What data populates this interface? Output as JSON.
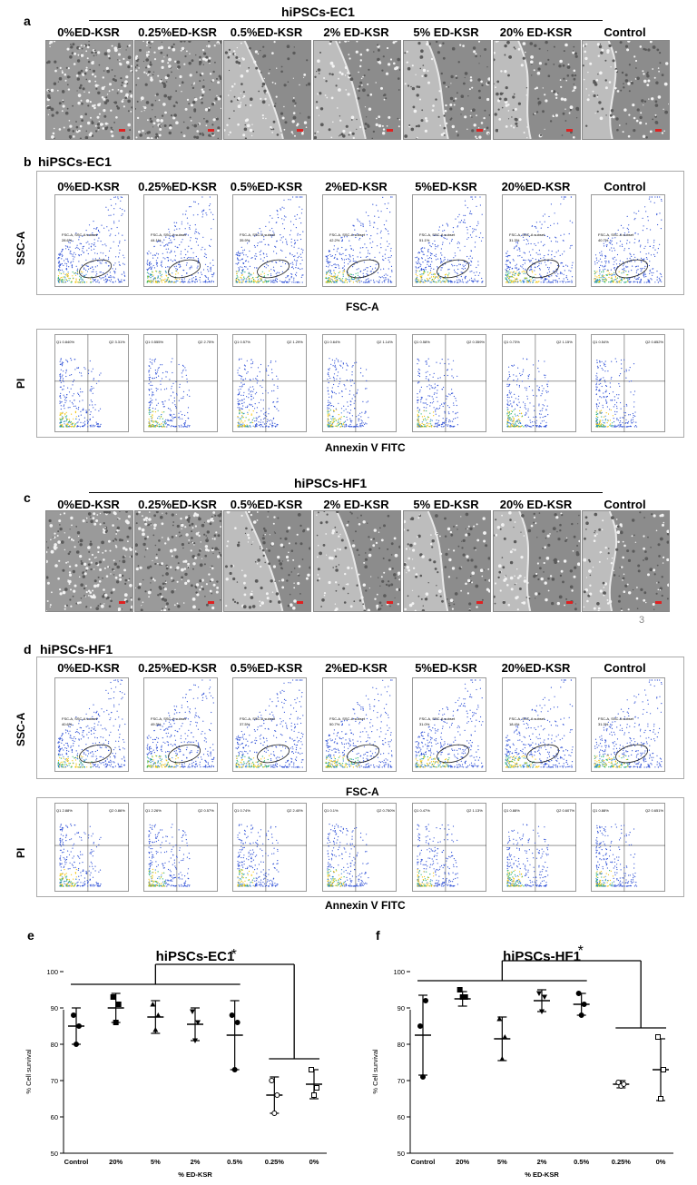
{
  "conditions": [
    "0%ED-KSR",
    "0.25%ED-KSR",
    "0.5%ED-KSR",
    "2%ED-KSR",
    "5%ED-KSR",
    "20%ED-KSR",
    "Control"
  ],
  "conditions_spaced": [
    "0%ED-KSR",
    "0.25%ED-KSR",
    "0.5%ED-KSR",
    "2% ED-KSR",
    "5% ED-KSR",
    "20% ED-KSR",
    "Control"
  ],
  "panel_a": {
    "letter": "a",
    "group": "hiPSCs-EC1"
  },
  "panel_b": {
    "letter": "b",
    "group": "hiPSCs-EC1",
    "scatter_gates": [
      "FSC-A, SSC-A subset\n28.6%",
      "FSC-A, SSC-A subset\n44.1%",
      "FSC-A, SSC-A subset\n35.9%",
      "FSC-A, SSC-A subset\n42.2%",
      "FSC-A, SSC-A subset\n51.1%",
      "FSC-A, SSC-A subset\n31.3%",
      "FSC-A, SSC-A subset\n40.7%"
    ],
    "quad_q1": [
      "0.840%",
      "0.555%",
      "0.57%",
      "0.64%",
      "0.58%",
      "0.73%",
      "0.54%"
    ],
    "quad_q2": [
      "3.31%",
      "2.75%",
      "1.29%",
      "1.14%",
      "0.359%",
      "1.15%",
      "0.852%"
    ],
    "ylabel_top": "SSC-A",
    "xlabel_top": "FSC-A",
    "ylabel_bot": "PI",
    "xlabel_bot": "Annexin V FITC"
  },
  "panel_c": {
    "letter": "c",
    "group": "hiPSCs-HF1",
    "corner_num": "3"
  },
  "panel_d": {
    "letter": "d",
    "group": "hiPSCs-HF1",
    "scatter_gates": [
      "FSC-A, SSC-A subset\n40.6%",
      "FSC-A, SSC-A subset\n49.3%",
      "FSC-A, SSC-A subset\n37.5%",
      "FSC-A, SSC-A subset\n50.7%",
      "FSC-A, SSC-A subset\n31.0%",
      "FSC-A, SSC-A subset\n18.4%",
      "FSC-A, SSC-A subset\n31.3%"
    ],
    "quad_q1": [
      "2.88%",
      "2.26%",
      "0.74%",
      "0.1%",
      "0.47%",
      "0.88%",
      "0.88%"
    ],
    "quad_q2": [
      "0.86%",
      "0.57%",
      "2.40%",
      "0.750%",
      "1.13%",
      "0.607%",
      "0.651%"
    ],
    "ylabel_top": "SSC-A",
    "xlabel_top": "FSC-A",
    "ylabel_bot": "PI",
    "xlabel_bot": "Annexin V FITC"
  },
  "chart_data": [
    {
      "type": "scatter",
      "letter": "e",
      "title": "hiPSCs-EC1",
      "xlabel": "% ED-KSR",
      "ylabel": "% Cell survival",
      "categories": [
        "Control",
        "20%",
        "5%",
        "2%",
        "0.5%",
        "0.25%",
        "0%"
      ],
      "ylim": [
        50,
        100
      ],
      "yticks": [
        50,
        60,
        70,
        80,
        90,
        100
      ],
      "points": [
        [
          88,
          80,
          85
        ],
        [
          93,
          86,
          91
        ],
        [
          91,
          84,
          88
        ],
        [
          89,
          81,
          86
        ],
        [
          88,
          73,
          86
        ],
        [
          70,
          61,
          66
        ],
        [
          73,
          66,
          68
        ]
      ],
      "mean": [
        85,
        90,
        87.5,
        85.5,
        82.5,
        66,
        69
      ],
      "sd": [
        5,
        4,
        4.5,
        4.5,
        9.5,
        5,
        4
      ],
      "significance": "*"
    },
    {
      "type": "scatter",
      "letter": "f",
      "title": "hiPSCs-HF1",
      "xlabel": "% ED-KSR",
      "ylabel": "% Cell survival",
      "categories": [
        "Control",
        "20%",
        "5%",
        "2%",
        "0.5%",
        "0.25%",
        "0%"
      ],
      "ylim": [
        50,
        100
      ],
      "yticks": [
        50,
        60,
        70,
        80,
        90,
        100
      ],
      "points": [
        [
          85,
          71,
          92
        ],
        [
          95,
          93,
          93
        ],
        [
          87,
          76,
          82
        ],
        [
          94,
          89,
          93
        ],
        [
          94,
          88,
          91
        ],
        [
          69.5,
          68.5,
          69
        ],
        [
          82,
          65,
          73
        ]
      ],
      "mean": [
        82.5,
        92.5,
        81.5,
        92,
        91,
        69,
        73
      ],
      "sd": [
        11,
        2,
        6,
        3,
        3,
        1,
        8.5
      ],
      "significance": "*"
    }
  ]
}
